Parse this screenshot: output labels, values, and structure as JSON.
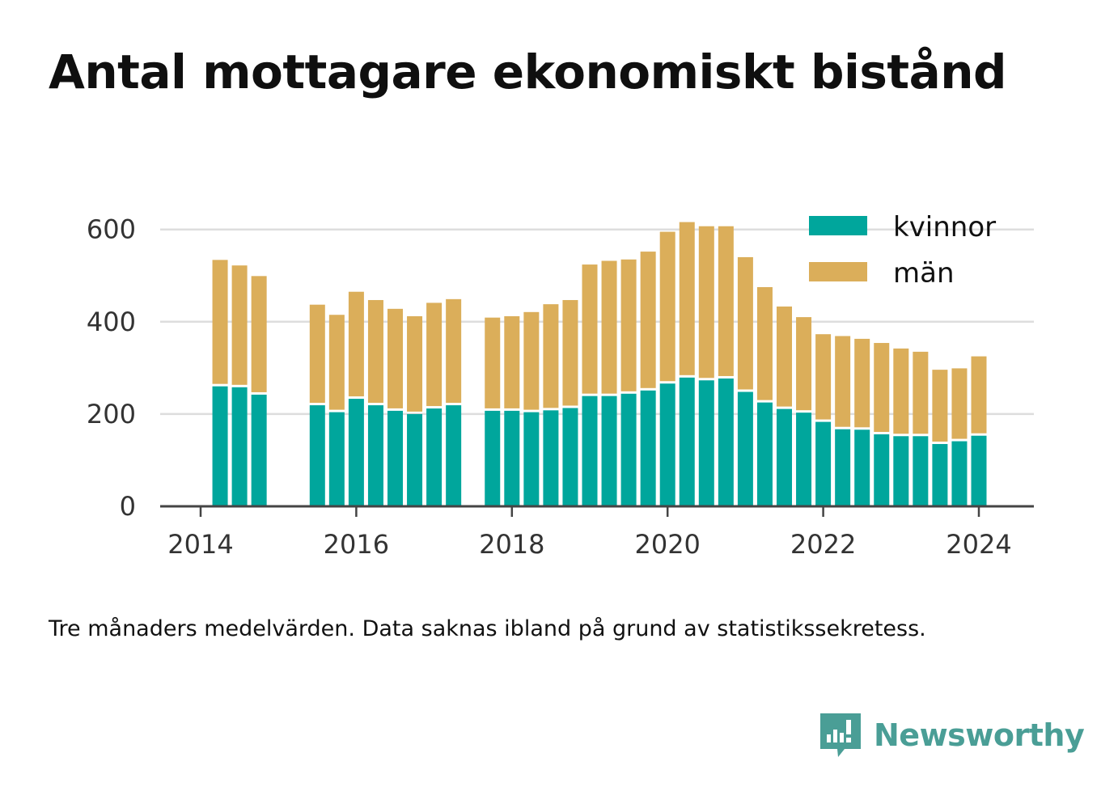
{
  "title": "Antal mottagare ekonomiskt bistånd",
  "caption": "Tre månaders medelvärden. Data saknas ibland på grund av statistikssekretess.",
  "brand": {
    "name": "Newsworthy",
    "icon": "newsworthy-logo-icon"
  },
  "colors": {
    "kvinnor": "#00a69c",
    "man": "#dbae5a",
    "grid": "#dddddd",
    "axis": "#444444"
  },
  "chart_data": {
    "type": "bar",
    "stacked": true,
    "title": "Antal mottagare ekonomiskt bistånd",
    "xlabel": "",
    "ylabel": "",
    "ylim": [
      0,
      700
    ],
    "xlim": [
      2013.5,
      2024.7
    ],
    "yticks": [
      0,
      200,
      400,
      600
    ],
    "xticks": [
      "2014",
      "2016",
      "2018",
      "2020",
      "2022",
      "2024"
    ],
    "grid": true,
    "legend": "top-right",
    "x": [
      2014.25,
      2014.5,
      2014.75,
      2015.5,
      2015.75,
      2016.0,
      2016.25,
      2016.5,
      2016.75,
      2017.0,
      2017.25,
      2017.75,
      2018.0,
      2018.25,
      2018.5,
      2018.75,
      2019.0,
      2019.25,
      2019.5,
      2019.75,
      2020.0,
      2020.25,
      2020.5,
      2020.75,
      2021.0,
      2021.25,
      2021.5,
      2021.75,
      2022.0,
      2022.25,
      2022.5,
      2022.75,
      2023.0,
      2023.25,
      2023.5,
      2023.75,
      2024.0
    ],
    "series": [
      {
        "name": "kvinnor",
        "values": [
          260,
          258,
          242,
          219,
          204,
          233,
          219,
          207,
          200,
          212,
          219,
          207,
          207,
          204,
          208,
          213,
          239,
          239,
          244,
          251,
          266,
          279,
          273,
          277,
          248,
          225,
          211,
          203,
          183,
          167,
          166,
          156,
          152,
          152,
          135,
          141,
          153
        ]
      },
      {
        "name": "män",
        "values": [
          274,
          264,
          257,
          218,
          211,
          232,
          228,
          221,
          212,
          229,
          230,
          202,
          205,
          217,
          230,
          234,
          285,
          293,
          291,
          301,
          329,
          337,
          334,
          330,
          292,
          250,
          222,
          207,
          190,
          202,
          197,
          198,
          190,
          183,
          161,
          158,
          172
        ]
      }
    ]
  }
}
